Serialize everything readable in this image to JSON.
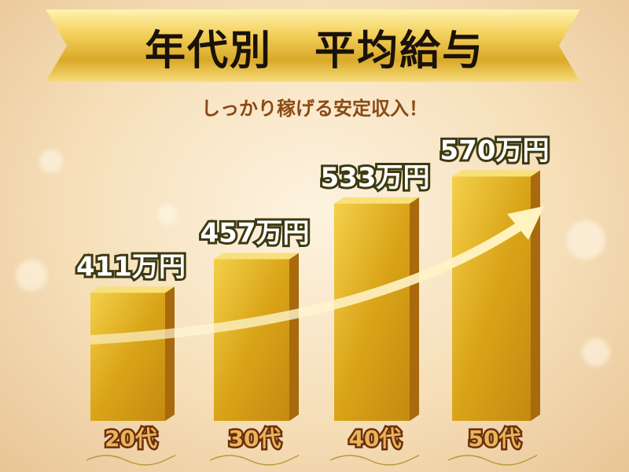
{
  "title": "年代別　平均給与",
  "subtitle": "しっかり稼げる安定収入！",
  "colors": {
    "bar": "#e0b020",
    "label_outline": "#3d3a12",
    "category_fill": "#e9b45a",
    "subtitle": "#8a4a14"
  },
  "chart_data": {
    "type": "bar",
    "title": "年代別　平均給与",
    "categories": [
      "20代",
      "30代",
      "40代",
      "50代"
    ],
    "values": [
      411,
      457,
      533,
      570
    ],
    "data_labels": [
      "411万円",
      "457万円",
      "533万円",
      "570万円"
    ],
    "unit": "万円",
    "trend_arrow": true,
    "grid": false
  }
}
